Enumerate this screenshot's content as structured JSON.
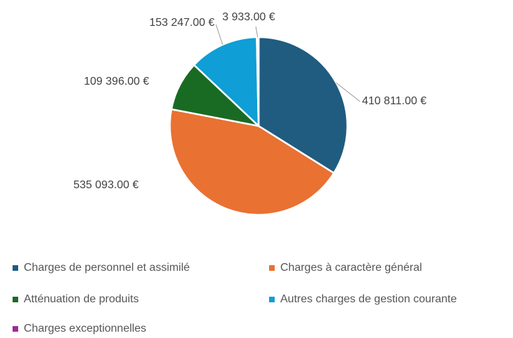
{
  "chart_data": {
    "type": "pie",
    "categories": [
      "Charges de personnel et assimilé",
      "Charges à caractère général",
      "Atténuation de produits",
      "Autres charges de gestion courante",
      "Charges exceptionnelles"
    ],
    "values": [
      410811,
      535093,
      109396,
      153247,
      3933
    ],
    "value_labels": [
      "410 811.00 €",
      "535 093.00 €",
      "109 396.00 €",
      "153 247.00 €",
      "3 933.00 €"
    ],
    "colors": [
      "#1f5c80",
      "#e97132",
      "#196b24",
      "#0f9ed5",
      "#a02b93"
    ],
    "legend": "bottom"
  }
}
